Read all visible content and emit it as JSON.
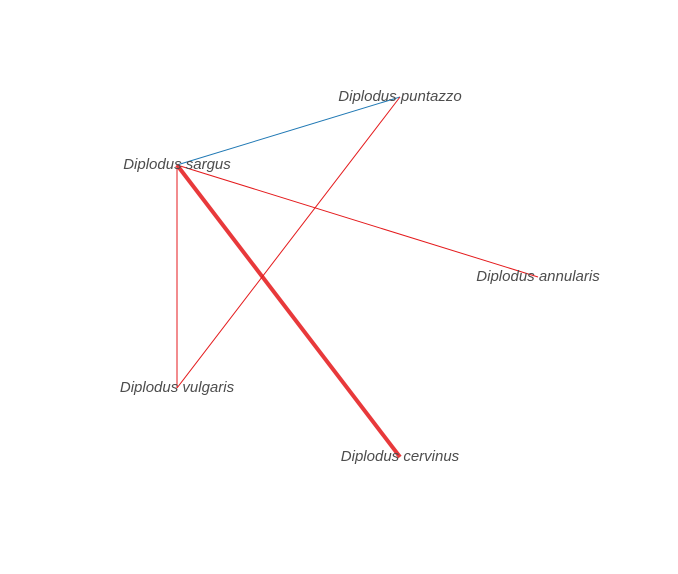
{
  "nodes": [
    {
      "id": "puntazzo",
      "label": "Diplodus puntazzo"
    },
    {
      "id": "sargus",
      "label": "Diplodus sargus"
    },
    {
      "id": "annularis",
      "label": "Diplodus annularis"
    },
    {
      "id": "vulgaris",
      "label": "Diplodus vulgaris"
    },
    {
      "id": "cervinus",
      "label": "Diplodus cervinus"
    }
  ],
  "edges": [
    {
      "from": "sargus",
      "to": "puntazzo",
      "color": "#1f78b4",
      "weight": 1
    },
    {
      "from": "sargus",
      "to": "annularis",
      "color": "#e41a1c",
      "weight": 1
    },
    {
      "from": "sargus",
      "to": "vulgaris",
      "color": "#e41a1c",
      "weight": 1
    },
    {
      "from": "sargus",
      "to": "cervinus",
      "color": "#e8393b",
      "weight": 4
    },
    {
      "from": "puntazzo",
      "to": "vulgaris",
      "color": "#e41a1c",
      "weight": 1
    }
  ]
}
